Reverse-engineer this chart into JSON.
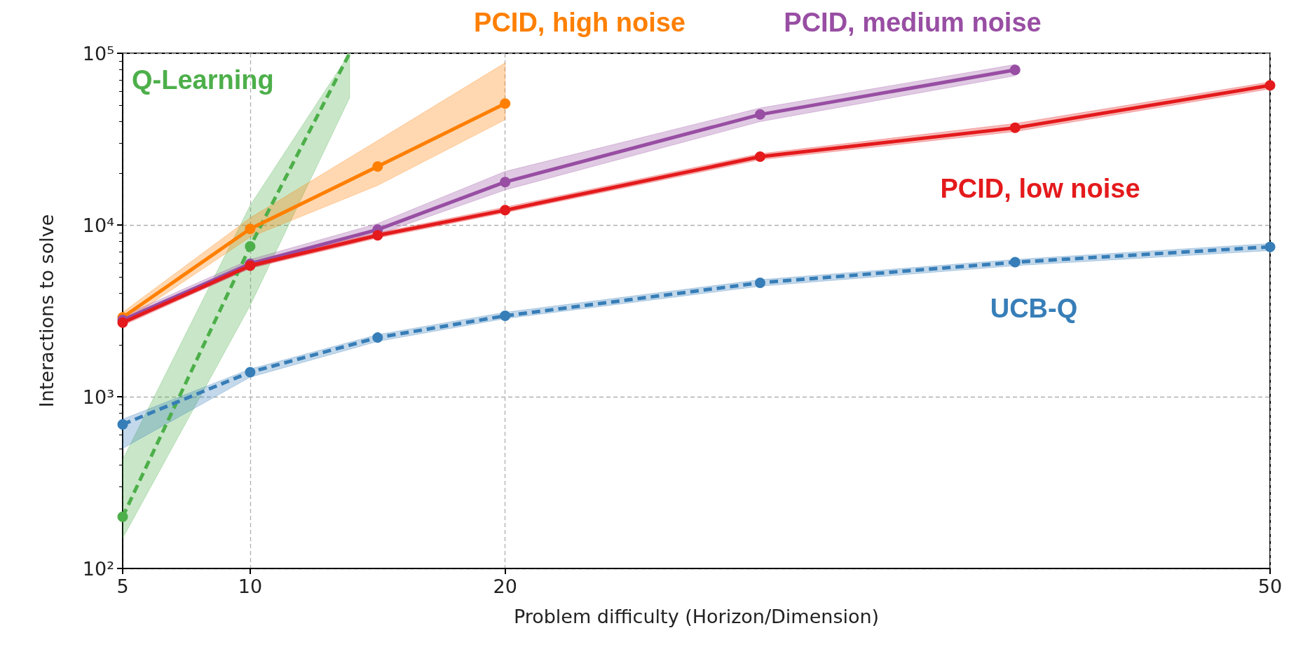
{
  "chart_data": {
    "type": "line",
    "xlabel": "Problem difficulty (Horizon/Dimension)",
    "ylabel": "Interactions to solve",
    "log": "y",
    "grid": true,
    "legend": false,
    "marker": "circle",
    "xlim": [
      5,
      50
    ],
    "xticks": [
      5,
      10,
      20,
      50
    ],
    "ylim": [
      100,
      100000
    ],
    "yticks": [
      {
        "value": 100,
        "label": "10²"
      },
      {
        "value": 1000,
        "label": "10³"
      },
      {
        "value": 10000,
        "label": "10⁴"
      },
      {
        "value": 100000,
        "label": "10⁵"
      }
    ],
    "x": [
      5,
      10,
      15,
      20,
      30,
      40,
      50
    ],
    "series": [
      {
        "name": "Q-Learning",
        "color": "#4daf4a",
        "line_style": "dashed",
        "x": [
          5,
          10,
          13.9
        ],
        "values": [
          200,
          7500,
          100000
        ],
        "lower": [
          150,
          3400,
          55000
        ],
        "upper": [
          430,
          13000,
          100000
        ]
      },
      {
        "name": "PCID, high noise",
        "color": "#ff7f00",
        "line_style": "solid",
        "x": [
          5,
          10,
          15,
          20
        ],
        "values": [
          2900,
          9500,
          21900,
          51000
        ],
        "lower": [
          2700,
          8500,
          17000,
          41000
        ],
        "upper": [
          3100,
          11000,
          31000,
          88000
        ]
      },
      {
        "name": "PCID, medium noise",
        "color": "#984ea3",
        "line_style": "solid",
        "x": [
          5,
          10,
          15,
          20,
          30,
          40
        ],
        "values": [
          2800,
          5950,
          9400,
          17800,
          44000,
          80000
        ],
        "lower": [
          2650,
          5600,
          8800,
          16000,
          40000,
          74000
        ],
        "upper": [
          2950,
          6300,
          10200,
          20500,
          48000,
          86000
        ]
      },
      {
        "name": "PCID, low noise",
        "color": "#e41a1c",
        "line_style": "solid",
        "values": [
          2700,
          5800,
          8700,
          12200,
          25000,
          36800,
          65000
        ],
        "lower": [
          2600,
          5600,
          8400,
          11800,
          24000,
          35000,
          62000
        ],
        "upper": [
          2800,
          6000,
          9000,
          12700,
          26000,
          39000,
          68000
        ]
      },
      {
        "name": "UCB-Q",
        "color": "#377eb8",
        "line_style": "dashed",
        "values": [
          690,
          1390,
          2210,
          2960,
          4610,
          6070,
          7460
        ],
        "lower": [
          500,
          1300,
          2100,
          2850,
          4400,
          5800,
          7100
        ],
        "upper": [
          740,
          1450,
          2300,
          3100,
          4800,
          6300,
          7800
        ]
      }
    ]
  }
}
